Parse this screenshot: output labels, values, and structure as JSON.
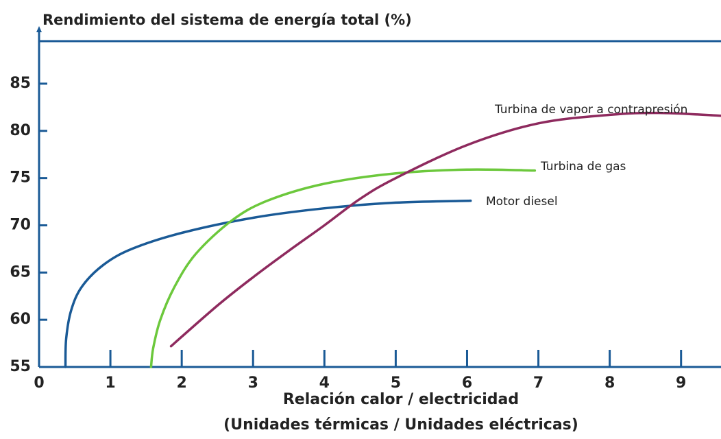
{
  "chart_data": {
    "type": "line",
    "title": "Rendimiento del sistema de energía total (%)",
    "x_label": "Relación calor / electricidad",
    "x_sublabel": "(Unidades térmicas / Unidades eléctricas)",
    "xlim": [
      0,
      9.56
    ],
    "ylim": [
      55,
      89.5
    ],
    "xticks": [
      0,
      1,
      2,
      3,
      4,
      5,
      6,
      7,
      8,
      9
    ],
    "yticks": [
      55,
      60,
      65,
      70,
      75,
      80,
      85
    ],
    "axis_color": "#1a5a96",
    "series": [
      {
        "name": "Motor diesel",
        "color": "#1a5a96",
        "x": [
          0.37,
          0.38,
          0.45,
          0.6,
          0.9,
          1.3,
          2,
          3,
          4,
          5,
          6.05
        ],
        "values": [
          55,
          58,
          61,
          63.5,
          65.8,
          67.5,
          69.2,
          70.8,
          71.8,
          72.4,
          72.6
        ]
      },
      {
        "name": "Turbina de gas",
        "color": "#6cc83c",
        "x": [
          1.57,
          1.6,
          1.7,
          1.9,
          2.2,
          2.7,
          3.2,
          4,
          5,
          6,
          6.95
        ],
        "values": [
          55,
          57,
          60,
          63.5,
          67,
          70.5,
          72.6,
          74.4,
          75.5,
          75.9,
          75.8
        ]
      },
      {
        "name": "Turbina de vapor a contrapresión",
        "color": "#8e2a5e",
        "x": [
          1.85,
          2.5,
          3,
          3.5,
          4,
          4.5,
          5,
          6,
          7,
          8,
          8.7,
          9.56
        ],
        "values": [
          57.2,
          61.5,
          64.5,
          67.3,
          70,
          72.8,
          75,
          78.5,
          80.8,
          81.7,
          81.9,
          81.6
        ]
      }
    ]
  }
}
